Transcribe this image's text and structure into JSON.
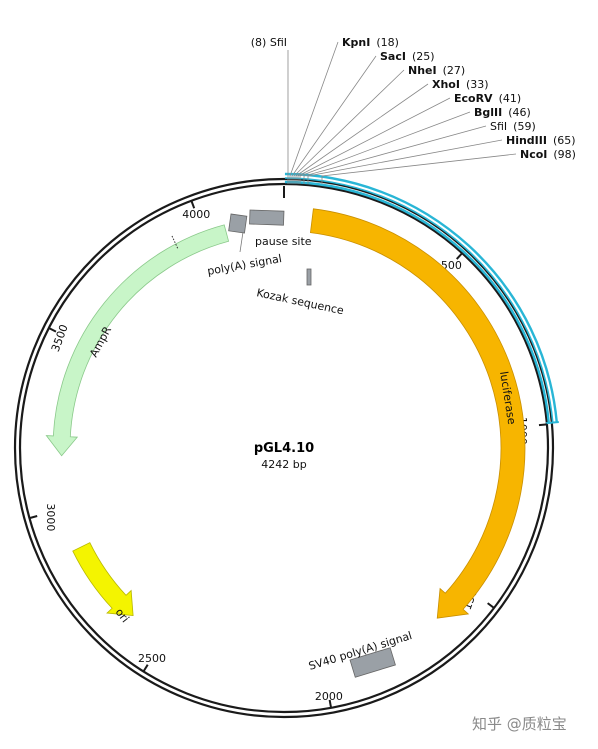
{
  "plasmid": {
    "name": "pGL4.10",
    "size_label": "4242 bp",
    "total_bp": 4242
  },
  "colors": {
    "backbone": "#1a1a1a",
    "highlight": "#29b6d6",
    "luciferase": "#f7b500",
    "ori": "#f4f400",
    "ampr": "#c8f5c8",
    "grey_feature": "#9aa0a6"
  },
  "sites": [
    {
      "text": "(8)  SfiI",
      "bold": false
    },
    {
      "name": "KpnI",
      "pos": "(18)",
      "bold": true
    },
    {
      "name": "SacI",
      "pos": "(25)",
      "bold": true
    },
    {
      "name": "NheI",
      "pos": "(27)",
      "bold": true
    },
    {
      "name": "XhoI",
      "pos": "(33)",
      "bold": true
    },
    {
      "name": "EcoRV",
      "pos": "(41)",
      "bold": true
    },
    {
      "name": "BglII",
      "pos": "(46)",
      "bold": true
    },
    {
      "name": "SfiI",
      "pos": "(59)",
      "bold": false
    },
    {
      "name": "HindIII",
      "pos": "(65)",
      "bold": true
    },
    {
      "name": "NcoI",
      "pos": "(98)",
      "bold": true
    }
  ],
  "ticks": [
    "500",
    "1000",
    "1500",
    "2000",
    "2500",
    "3000",
    "3500",
    "4000"
  ],
  "features": {
    "luciferase": "luciferase",
    "ori": "ori",
    "ampr": "AmpR",
    "sv40": "SV40 poly(A) signal",
    "polya": "poly(A) signal",
    "pause": "pause site",
    "kozak": "Kozak sequence"
  },
  "watermark": "知乎 @质粒宝"
}
